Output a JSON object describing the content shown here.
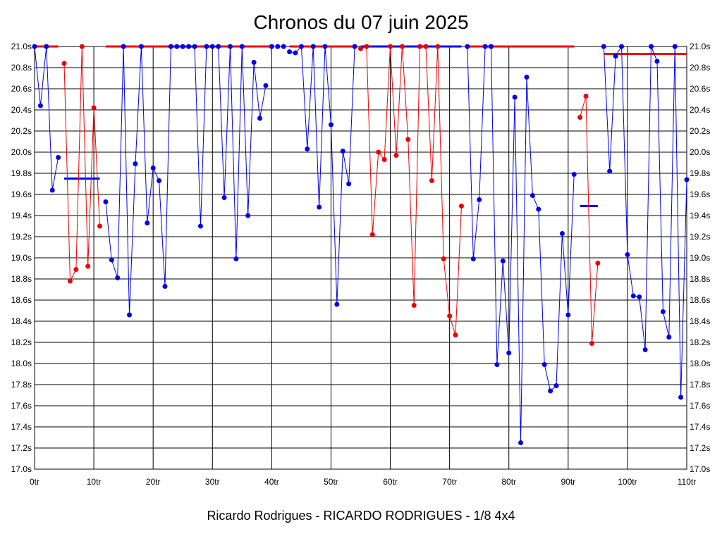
{
  "title": "Chronos du 07 juin 2025",
  "footer": "Ricardo Rodrigues - RICARDO RODRIGUES - 1/8 4x4",
  "colors": {
    "background": "#ffffff",
    "grid": "#000000",
    "series_blue": "#0000ee",
    "series_red": "#ee0000"
  },
  "chart_data": {
    "type": "line",
    "title": "Chronos du 07 juin 2025",
    "xlabel": "",
    "ylabel": "",
    "xlim": [
      0,
      110
    ],
    "ylim": [
      17.0,
      21.0
    ],
    "grid": true,
    "x_ticks": [
      "0tr",
      "10tr",
      "20tr",
      "30tr",
      "40tr",
      "50tr",
      "60tr",
      "70tr",
      "80tr",
      "90tr",
      "100tr",
      "110tr"
    ],
    "y_ticks": [
      "17.0s",
      "17.2s",
      "17.4s",
      "17.6s",
      "17.8s",
      "18.0s",
      "18.2s",
      "18.4s",
      "18.6s",
      "18.8s",
      "19.0s",
      "19.2s",
      "19.4s",
      "19.6s",
      "19.8s",
      "20.0s",
      "20.2s",
      "20.4s",
      "20.6s",
      "20.8s",
      "21.0s"
    ],
    "series": [
      {
        "color": "#0000ee",
        "points": [
          [
            0,
            21.0
          ],
          [
            1,
            20.44
          ],
          [
            2,
            21.0
          ],
          [
            3,
            19.64
          ],
          [
            4,
            19.95
          ]
        ]
      },
      {
        "color": "#ee0000",
        "points": [
          [
            5,
            20.84
          ],
          [
            6,
            18.78
          ],
          [
            7,
            18.89
          ],
          [
            8,
            21.0
          ],
          [
            9,
            18.92
          ],
          [
            10,
            20.42
          ],
          [
            11,
            19.3
          ]
        ]
      },
      {
        "color": "#0000ee",
        "points": [
          [
            12,
            19.53
          ],
          [
            13,
            18.98
          ],
          [
            14,
            18.81
          ],
          [
            15,
            21.0
          ],
          [
            16,
            18.46
          ],
          [
            17,
            19.89
          ],
          [
            18,
            21.0
          ],
          [
            19,
            19.33
          ],
          [
            20,
            19.85
          ],
          [
            21,
            19.73
          ],
          [
            22,
            18.73
          ],
          [
            23,
            21.0
          ],
          [
            24,
            21.0
          ],
          [
            25,
            21.0
          ],
          [
            26,
            21.0
          ],
          [
            27,
            21.0
          ],
          [
            28,
            19.3
          ],
          [
            29,
            21.0
          ],
          [
            30,
            21.0
          ],
          [
            31,
            21.0
          ],
          [
            32,
            19.57
          ],
          [
            33,
            21.0
          ],
          [
            34,
            18.99
          ],
          [
            35,
            21.0
          ],
          [
            36,
            19.4
          ],
          [
            37,
            20.85
          ],
          [
            38,
            20.32
          ],
          [
            39,
            20.63
          ]
        ]
      },
      {
        "color": "#0000ee",
        "points": [
          [
            40,
            21.0
          ],
          [
            41,
            21.0
          ],
          [
            42,
            21.0
          ]
        ]
      },
      {
        "color": "#0000ee",
        "points": [
          [
            43,
            20.95
          ],
          [
            44,
            20.94
          ],
          [
            45,
            21.0
          ],
          [
            46,
            20.03
          ],
          [
            47,
            21.0
          ],
          [
            48,
            19.48
          ],
          [
            49,
            21.0
          ],
          [
            50,
            20.26
          ],
          [
            51,
            18.56
          ],
          [
            52,
            20.01
          ],
          [
            53,
            19.7
          ],
          [
            54,
            21.0
          ]
        ]
      },
      {
        "color": "#ee0000",
        "points": [
          [
            55,
            20.98
          ],
          [
            56,
            21.0
          ],
          [
            57,
            19.22
          ],
          [
            58,
            20.0
          ],
          [
            59,
            19.93
          ],
          [
            60,
            21.0
          ],
          [
            61,
            19.97
          ],
          [
            62,
            21.0
          ],
          [
            63,
            20.12
          ],
          [
            64,
            18.55
          ],
          [
            65,
            21.0
          ],
          [
            66,
            21.0
          ],
          [
            67,
            19.73
          ],
          [
            68,
            21.0
          ],
          [
            69,
            18.99
          ],
          [
            70,
            18.45
          ],
          [
            71,
            18.27
          ],
          [
            72,
            19.49
          ]
        ]
      },
      {
        "color": "#0000ee",
        "points": [
          [
            73,
            21.0
          ],
          [
            74,
            18.99
          ],
          [
            75,
            19.55
          ],
          [
            76,
            21.0
          ],
          [
            77,
            21.0
          ],
          [
            78,
            17.99
          ],
          [
            79,
            18.97
          ],
          [
            80,
            18.1
          ],
          [
            81,
            20.52
          ],
          [
            82,
            17.25
          ],
          [
            83,
            20.71
          ],
          [
            84,
            19.59
          ],
          [
            85,
            19.46
          ],
          [
            86,
            17.99
          ],
          [
            87,
            17.74
          ],
          [
            88,
            17.79
          ],
          [
            89,
            19.23
          ],
          [
            90,
            18.46
          ],
          [
            91,
            19.79
          ]
        ]
      },
      {
        "color": "#ee0000",
        "points": [
          [
            92,
            20.33
          ],
          [
            93,
            20.53
          ],
          [
            94,
            18.19
          ],
          [
            95,
            18.95
          ]
        ]
      },
      {
        "color": "#0000ee",
        "points": [
          [
            96,
            21.0
          ],
          [
            97,
            19.82
          ],
          [
            98,
            20.91
          ],
          [
            99,
            21.0
          ],
          [
            100,
            19.03
          ],
          [
            101,
            18.64
          ],
          [
            102,
            18.63
          ],
          [
            103,
            18.13
          ],
          [
            104,
            21.0
          ],
          [
            105,
            20.86
          ],
          [
            106,
            18.49
          ],
          [
            107,
            18.25
          ],
          [
            108,
            21.0
          ],
          [
            109,
            17.68
          ],
          [
            110,
            19.74
          ]
        ]
      }
    ],
    "averages": [
      {
        "color": "#ee0000",
        "x_range": [
          0,
          4
        ],
        "value": 21.0
      },
      {
        "color": "#0000ee",
        "x_range": [
          5,
          11
        ],
        "value": 19.75
      },
      {
        "color": "#ee0000",
        "x_range": [
          12,
          40
        ],
        "value": 21.0
      },
      {
        "color": "#ee0000",
        "x_range": [
          43,
          54
        ],
        "value": 21.0
      },
      {
        "color": "#0000ee",
        "x_range": [
          55,
          72
        ],
        "value": 21.0
      },
      {
        "color": "#ee0000",
        "x_range": [
          73,
          91
        ],
        "value": 21.0
      },
      {
        "color": "#0000ee",
        "x_range": [
          92,
          95
        ],
        "value": 19.49
      },
      {
        "color": "#ee0000",
        "x_range": [
          96,
          110
        ],
        "value": 20.93
      }
    ]
  }
}
